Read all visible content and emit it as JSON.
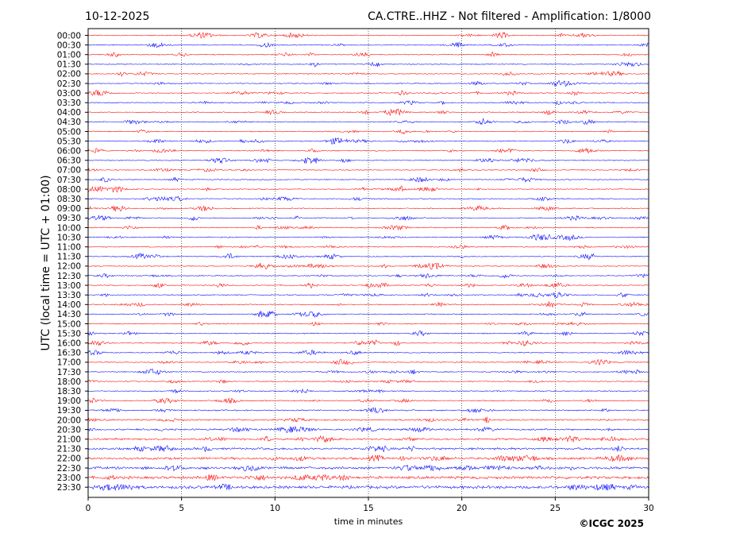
{
  "chart_data": {
    "type": "line",
    "title_left": "10-12-2025",
    "title_right": "CA.CTRE..HHZ - Not filtered - Amplification: 1/8000",
    "xlabel": "time in minutes",
    "ylabel": "UTC (local time = UTC + 01:00)",
    "xlim": [
      0,
      30
    ],
    "x_ticks": [
      0,
      5,
      10,
      15,
      20,
      25,
      30
    ],
    "grid": "vertical dotted",
    "row_labels": [
      "00:00",
      "00:30",
      "01:00",
      "01:30",
      "02:00",
      "02:30",
      "03:00",
      "03:30",
      "04:00",
      "04:30",
      "05:00",
      "05:30",
      "06:00",
      "06:30",
      "07:00",
      "07:30",
      "08:00",
      "08:30",
      "09:00",
      "09:30",
      "10:00",
      "10:30",
      "11:00",
      "11:30",
      "12:00",
      "12:30",
      "13:00",
      "13:30",
      "14:00",
      "14:30",
      "15:00",
      "15:30",
      "16:00",
      "16:30",
      "17:00",
      "17:30",
      "18:00",
      "18:30",
      "19:00",
      "19:30",
      "20:00",
      "20:30",
      "21:00",
      "21:30",
      "22:00",
      "22:30",
      "23:00",
      "23:30"
    ],
    "row_colors": [
      "#ff0000",
      "#0000ff"
    ]
  },
  "copyright": "©ICGC 2025"
}
